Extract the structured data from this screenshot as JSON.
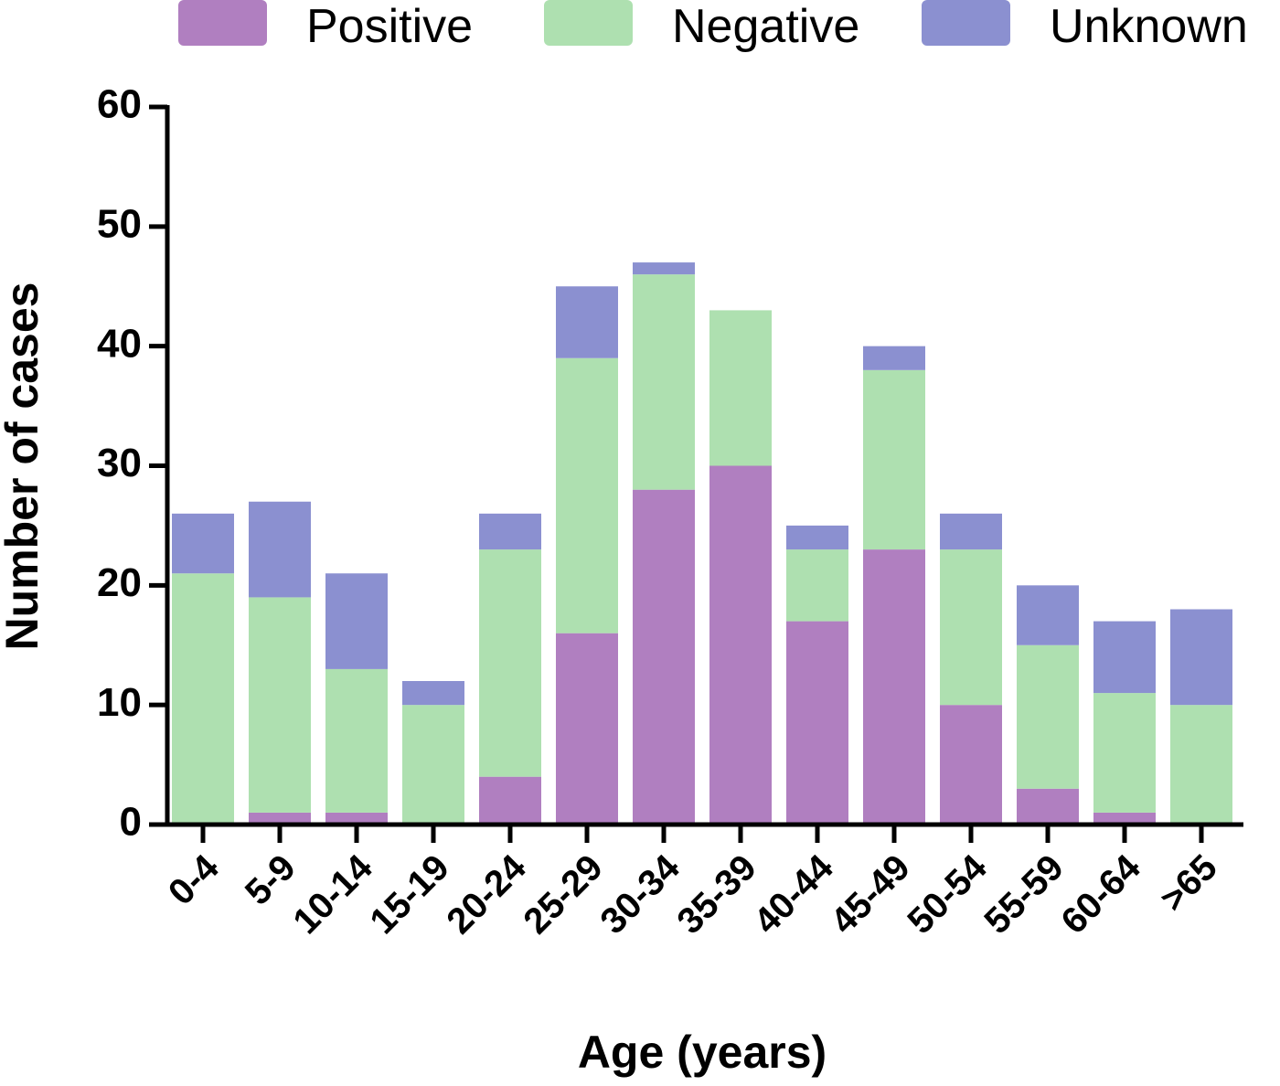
{
  "chart_data": {
    "type": "stacked_bar",
    "x_label": "Age (years)",
    "y_label": "Number of cases",
    "categories": [
      "0-4",
      "5-9",
      "10-14",
      "15-19",
      "20-24",
      "25-29",
      "30-34",
      "35-39",
      "40-44",
      "45-49",
      "50-54",
      "55-59",
      "60-64",
      ">65"
    ],
    "series": [
      {
        "name": "Positive",
        "color": "#b07fc0",
        "values": [
          0,
          1,
          1,
          0,
          4,
          16,
          28,
          30,
          17,
          23,
          10,
          3,
          1,
          0
        ]
      },
      {
        "name": "Negative",
        "color": "#aee0b0",
        "values": [
          21,
          18,
          12,
          10,
          19,
          23,
          18,
          13,
          6,
          15,
          13,
          12,
          10,
          10
        ]
      },
      {
        "name": "Unknown",
        "color": "#8b90d0",
        "values": [
          5,
          8,
          8,
          2,
          3,
          6,
          1,
          0,
          2,
          2,
          3,
          5,
          6,
          8
        ]
      }
    ],
    "ylim": [
      0,
      60
    ],
    "yticks": [
      0,
      10,
      20,
      30,
      40,
      50,
      60
    ]
  }
}
